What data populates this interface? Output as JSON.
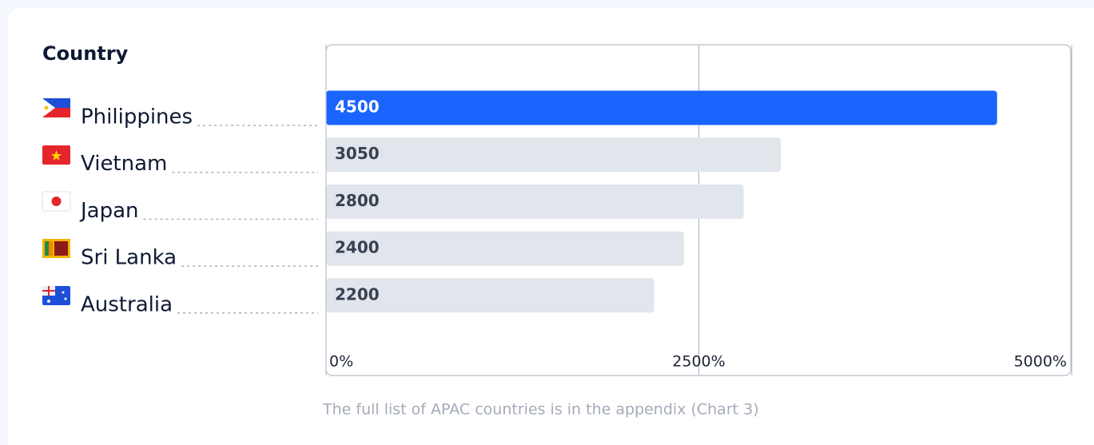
{
  "chart_data": {
    "type": "bar",
    "orientation": "horizontal",
    "category_heading": "Country",
    "categories": [
      "Philippines",
      "Vietnam",
      "Japan",
      "Sri Lanka",
      "Australia"
    ],
    "values": [
      4500,
      3050,
      2800,
      2400,
      2200
    ],
    "color": "#e1e5ec",
    "highlight": "Philippines",
    "highlight_color": "#1a64ff",
    "xlim": [
      0,
      5000
    ],
    "xticks": [
      {
        "value": 0,
        "label": "0%"
      },
      {
        "value": 2500,
        "label": "2500%"
      },
      {
        "value": 5000,
        "label": "5000%"
      }
    ],
    "grid": true,
    "footnote": "The full list of APAC countries is in the appendix (Chart 3)"
  }
}
